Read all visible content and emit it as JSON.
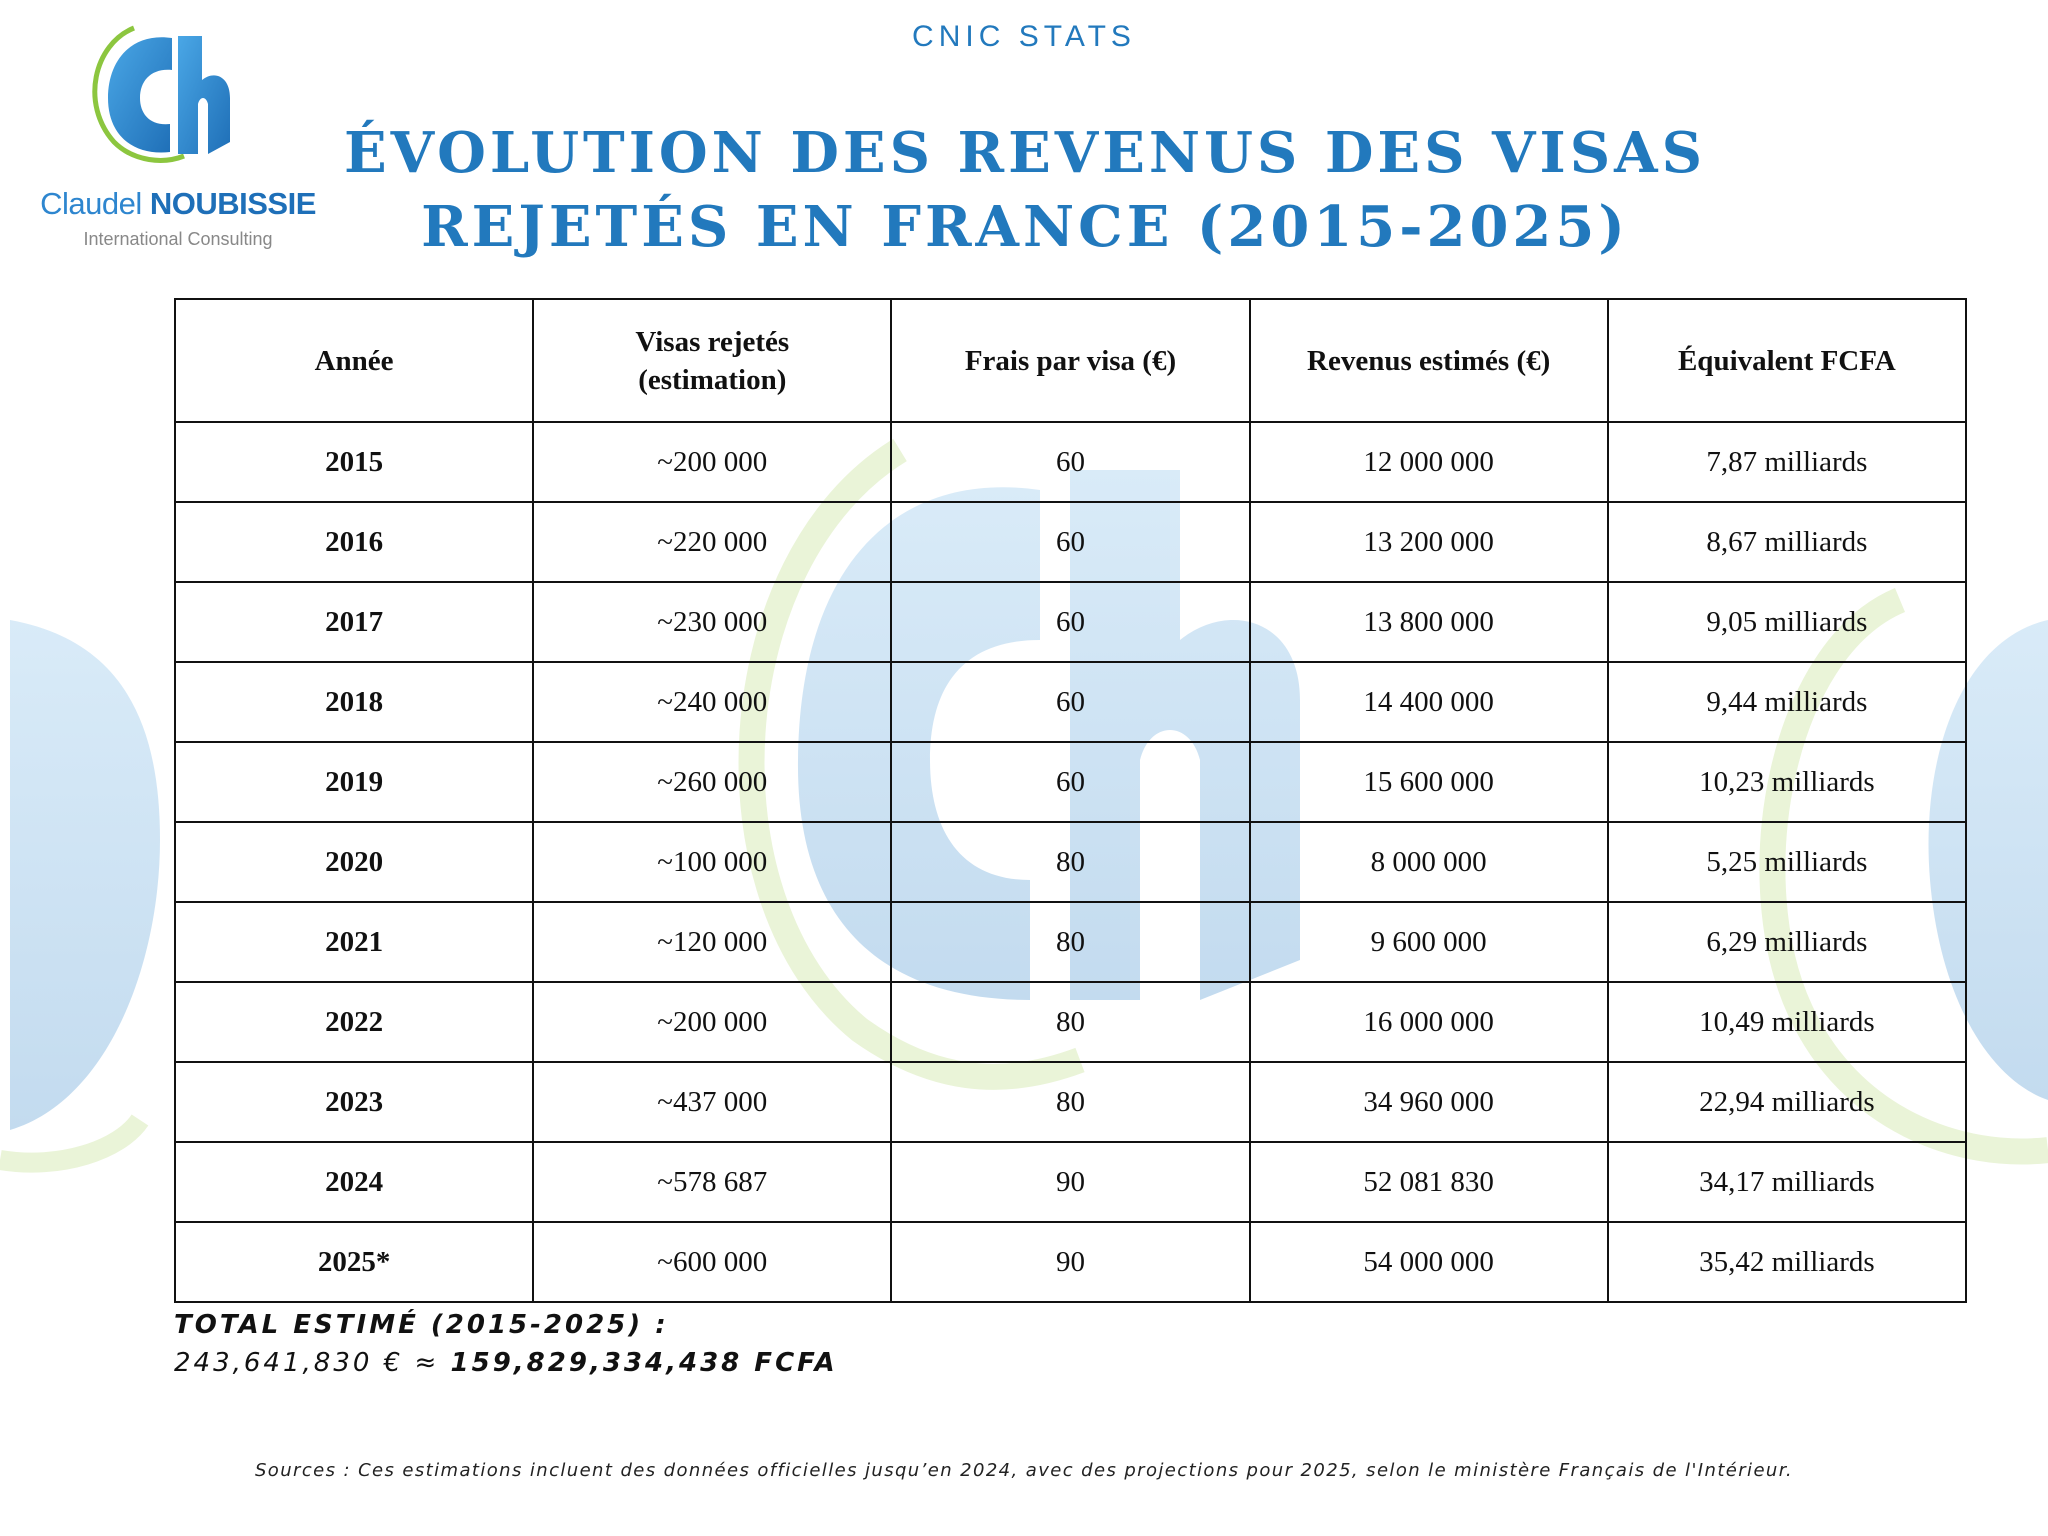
{
  "logo": {
    "first_name": "Claudel",
    "last_name": "NOUBISSIE",
    "tagline": "International Consulting"
  },
  "header": {
    "brand": "CNIC STATS",
    "title_line1": "ÉVOLUTION DES REVENUS DES VISAS",
    "title_line2": "REJETÉS EN FRANCE (2015-2025)"
  },
  "table": {
    "columns": [
      "Année",
      "Visas rejetés",
      "(estimation)",
      "Frais par visa (€)",
      "Revenus estimés (€)",
      "Équivalent FCFA"
    ],
    "rows": [
      {
        "year": "2015",
        "rejected": "~200 000",
        "fee": "60",
        "revenue": "12 000 000",
        "fcfa": "7,87 milliards"
      },
      {
        "year": "2016",
        "rejected": "~220 000",
        "fee": "60",
        "revenue": "13 200 000",
        "fcfa": "8,67 milliards"
      },
      {
        "year": "2017",
        "rejected": "~230 000",
        "fee": "60",
        "revenue": "13 800 000",
        "fcfa": "9,05 milliards"
      },
      {
        "year": "2018",
        "rejected": "~240 000",
        "fee": "60",
        "revenue": "14 400 000",
        "fcfa": "9,44 milliards"
      },
      {
        "year": "2019",
        "rejected": "~260 000",
        "fee": "60",
        "revenue": "15 600 000",
        "fcfa": "10,23 milliards"
      },
      {
        "year": "2020",
        "rejected": "~100 000",
        "fee": "80",
        "revenue": "8 000 000",
        "fcfa": "5,25 milliards"
      },
      {
        "year": "2021",
        "rejected": "~120 000",
        "fee": "80",
        "revenue": "9 600 000",
        "fcfa": "6,29 milliards"
      },
      {
        "year": "2022",
        "rejected": "~200 000",
        "fee": "80",
        "revenue": "16 000 000",
        "fcfa": "10,49 milliards"
      },
      {
        "year": "2023",
        "rejected": "~437 000",
        "fee": "80",
        "revenue": "34 960 000",
        "fcfa": "22,94 milliards"
      },
      {
        "year": "2024",
        "rejected": "~578 687",
        "fee": "90",
        "revenue": "52 081 830",
        "fcfa": "34,17 milliards"
      },
      {
        "year": "2025*",
        "rejected": "~600 000",
        "fee": "90",
        "revenue": "54 000 000",
        "fcfa": "35,42 milliards"
      }
    ]
  },
  "total": {
    "label": "TOTAL ESTIMÉ (2015-2025) :",
    "euros": "243,641,830 € ≈ ",
    "fcfa": "159,829,334,438 FCFA"
  },
  "footer": {
    "sources": "Sources : Ces estimations incluent des données officielles jusqu’en 2024, avec des projections pour 2025, selon le ministère Français de l'Intérieur."
  },
  "colors": {
    "brand_blue": "#2279bd",
    "watermark_blue": "#cfe3f3",
    "watermark_green": "#e6f2cf"
  },
  "icons": {
    "logo": "cn-monogram-logo-icon",
    "watermark": "cn-monogram-watermark-icon"
  }
}
